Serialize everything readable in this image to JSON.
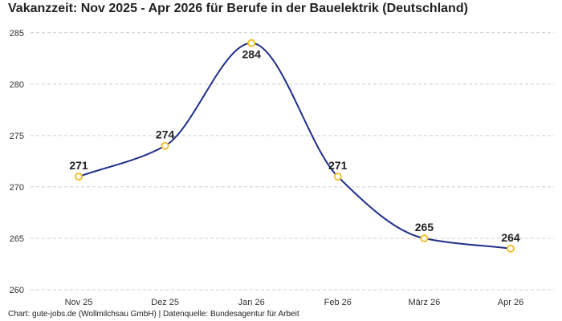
{
  "chart_data": {
    "type": "line",
    "title": "Vakanzzeit: Nov 2025 - Apr 2026 für Berufe in der Bauelektrik (Deutschland)",
    "categories": [
      "Nov 25",
      "Dez 25",
      "Jan 26",
      "Feb 26",
      "März 26",
      "Apr 26"
    ],
    "values": [
      271,
      274,
      284,
      271,
      265,
      264
    ],
    "data_labels": [
      "271",
      "274",
      "284",
      "271",
      "265",
      "264"
    ],
    "yticks": [
      260,
      265,
      270,
      275,
      280,
      285
    ],
    "ylim": [
      260,
      286
    ],
    "grid": true,
    "legend": "none",
    "xlabel": "",
    "ylabel": "",
    "source": "Chart: gute-jobs.de (Wollmilchsau GmbH) | Datenquelle: Bundesagentur für Arbeit",
    "colors": {
      "line": "#1f2f8a",
      "marker": "#f2c12e",
      "grid": "#cccccc"
    }
  }
}
